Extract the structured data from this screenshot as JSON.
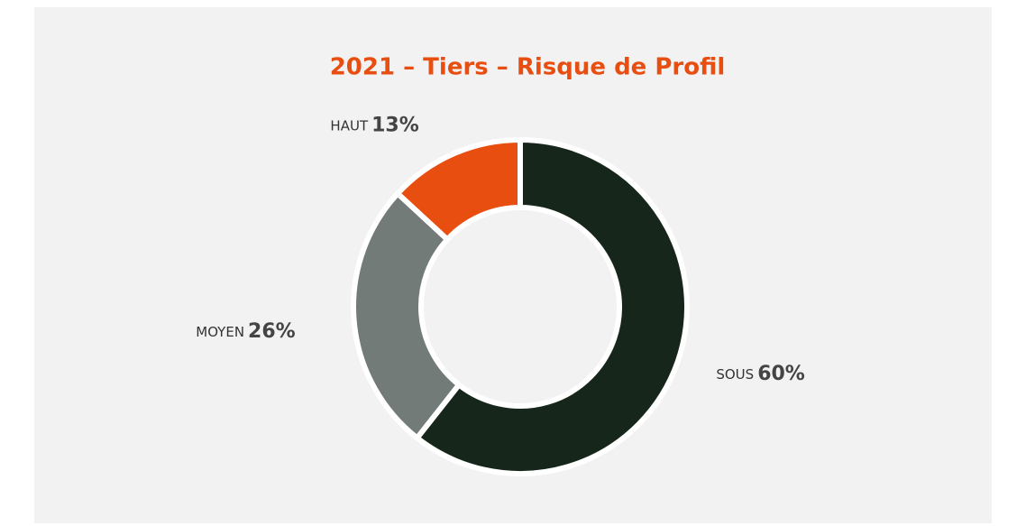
{
  "chart_data": {
    "type": "donut",
    "title": "2021 – Tiers – Risque de Profil",
    "categories": [
      "SOUS",
      "MOYEN",
      "HAUT"
    ],
    "values": [
      60,
      26,
      13
    ],
    "value_labels": [
      "60%",
      "26%",
      "13%"
    ],
    "colors": [
      "#17261b",
      "#737b78",
      "#e84e0f"
    ]
  }
}
